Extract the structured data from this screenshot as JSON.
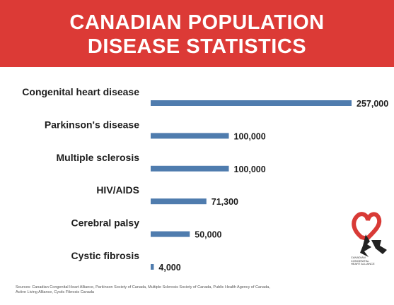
{
  "title": {
    "line1": "CANADIAN POPULATION",
    "line2": "DISEASE STATISTICS"
  },
  "colors": {
    "banner": "#dc3a36",
    "bar": "#4f7cae",
    "logo_red": "#d83a36"
  },
  "chart_data": {
    "type": "bar",
    "orientation": "horizontal",
    "categories": [
      "Congenital heart disease",
      "Parkinson's disease",
      "Multiple sclerosis",
      "HIV/AIDS",
      "Cerebral palsy",
      "Cystic fibrosis"
    ],
    "values": [
      257000,
      100000,
      100000,
      71300,
      50000,
      4000
    ],
    "value_labels": [
      "257,000",
      "100,000",
      "100,000",
      "71,300",
      "50,000",
      "4,000"
    ],
    "xlim": [
      0,
      257000
    ],
    "grid": false,
    "legend": "none"
  },
  "logo": {
    "text_lines": [
      "CANADIAN",
      "CONGENITAL",
      "HEART ALLIANCE"
    ]
  },
  "sources": {
    "line1": "Sources: Canadian Congenital Heart Alliance, Parkinson Society of Canada, Multiple Sclerosis Society of Canada, Public Health Agency of Canada,",
    "line2": "Active Living Alliance, Cystic Fibrosis Canada"
  }
}
